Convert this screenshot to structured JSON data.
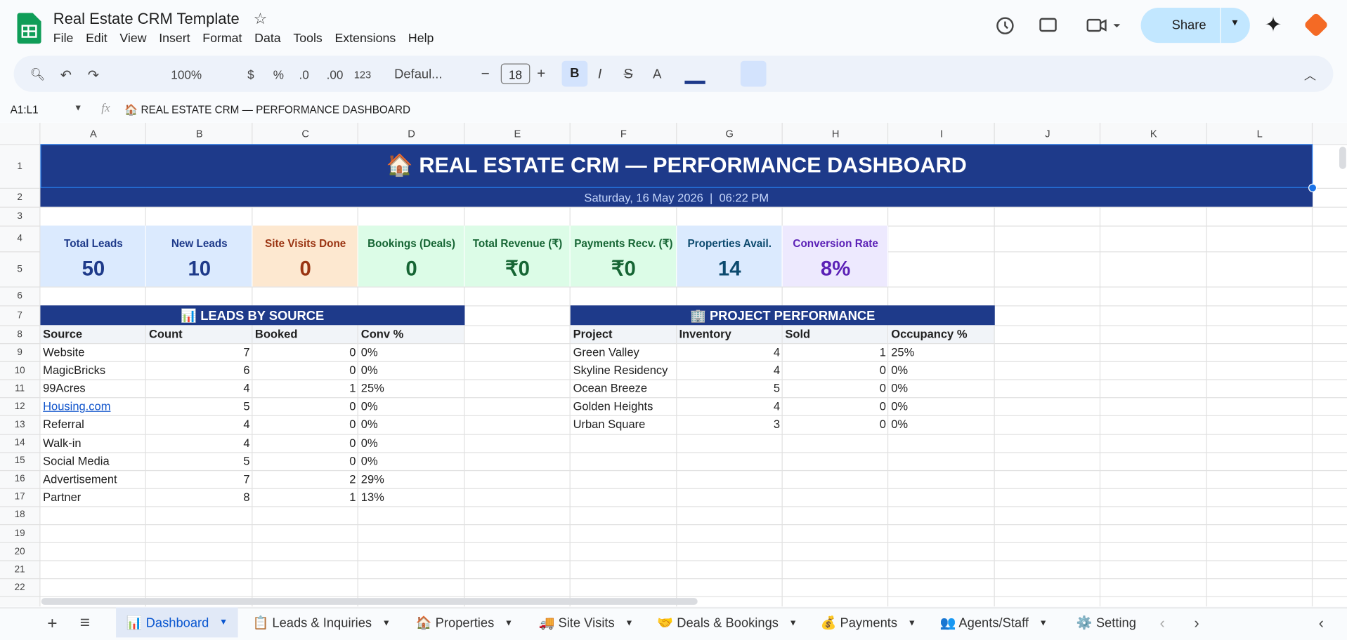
{
  "app": {
    "title": "Real Estate CRM Template",
    "menu": [
      "File",
      "Edit",
      "View",
      "Insert",
      "Format",
      "Data",
      "Tools",
      "Extensions",
      "Help"
    ],
    "share": "Share"
  },
  "toolbar": {
    "zoom": "100%",
    "currency": "$",
    "percent": "%",
    "dec_less": ".0",
    "dec_more": ".00",
    "format": "123",
    "font": "Defaul...",
    "font_size": "18"
  },
  "formula_bar": {
    "name_box": "A1:L1",
    "fx": "fx",
    "content": "🏠 REAL ESTATE CRM — PERFORMANCE DASHBOARD"
  },
  "grid": {
    "columns": [
      "A",
      "B",
      "C",
      "D",
      "E",
      "F",
      "G",
      "H",
      "I",
      "J",
      "K",
      "L"
    ],
    "rows": [
      1,
      2,
      3,
      4,
      5,
      6,
      7,
      8,
      9,
      10,
      11,
      12,
      13,
      14,
      15,
      16,
      17,
      18,
      19,
      20,
      21,
      22
    ]
  },
  "sheet": {
    "title": "🏠  REAL ESTATE CRM — PERFORMANCE DASHBOARD",
    "date": "Saturday, 16 May 2026  |  06:22 PM",
    "kpis": [
      {
        "label": "Total Leads",
        "value": "50"
      },
      {
        "label": "New Leads",
        "value": "10"
      },
      {
        "label": "Site Visits Done",
        "value": "0"
      },
      {
        "label": "Bookings (Deals)",
        "value": "0"
      },
      {
        "label": "Total Revenue (₹)",
        "value": "₹0"
      },
      {
        "label": "Payments Recv. (₹)",
        "value": "₹0"
      },
      {
        "label": "Properties Avail.",
        "value": "14"
      },
      {
        "label": "Conversion Rate",
        "value": "8%"
      }
    ],
    "leads": {
      "title": "📊 LEADS BY SOURCE",
      "headers": [
        "Source",
        "Count",
        "Booked",
        "Conv %"
      ],
      "rows": [
        [
          "Website",
          7,
          0,
          "0%"
        ],
        [
          "MagicBricks",
          6,
          0,
          "0%"
        ],
        [
          "99Acres",
          4,
          1,
          "25%"
        ],
        [
          "Housing.com",
          5,
          0,
          "0%"
        ],
        [
          "Referral",
          4,
          0,
          "0%"
        ],
        [
          "Walk-in",
          4,
          0,
          "0%"
        ],
        [
          "Social Media",
          5,
          0,
          "0%"
        ],
        [
          "Advertisement",
          7,
          2,
          "29%"
        ],
        [
          "Partner",
          8,
          1,
          "13%"
        ]
      ]
    },
    "projects": {
      "title": "🏢 PROJECT PERFORMANCE",
      "headers": [
        "Project",
        "Inventory",
        "Sold",
        "Occupancy %"
      ],
      "rows": [
        [
          "Green Valley",
          4,
          1,
          "25%"
        ],
        [
          "Skyline Residency",
          4,
          0,
          "0%"
        ],
        [
          "Ocean Breeze",
          5,
          0,
          "0%"
        ],
        [
          "Golden Heights",
          4,
          0,
          "0%"
        ],
        [
          "Urban Square",
          3,
          0,
          "0%"
        ]
      ]
    }
  },
  "tabs": [
    "📊 Dashboard",
    "📋 Leads & Inquiries",
    "🏠 Properties",
    "🚚 Site Visits",
    "🤝 Deals & Bookings",
    "💰 Payments",
    "👥 Agents/Staff",
    "⚙️ Setting"
  ]
}
